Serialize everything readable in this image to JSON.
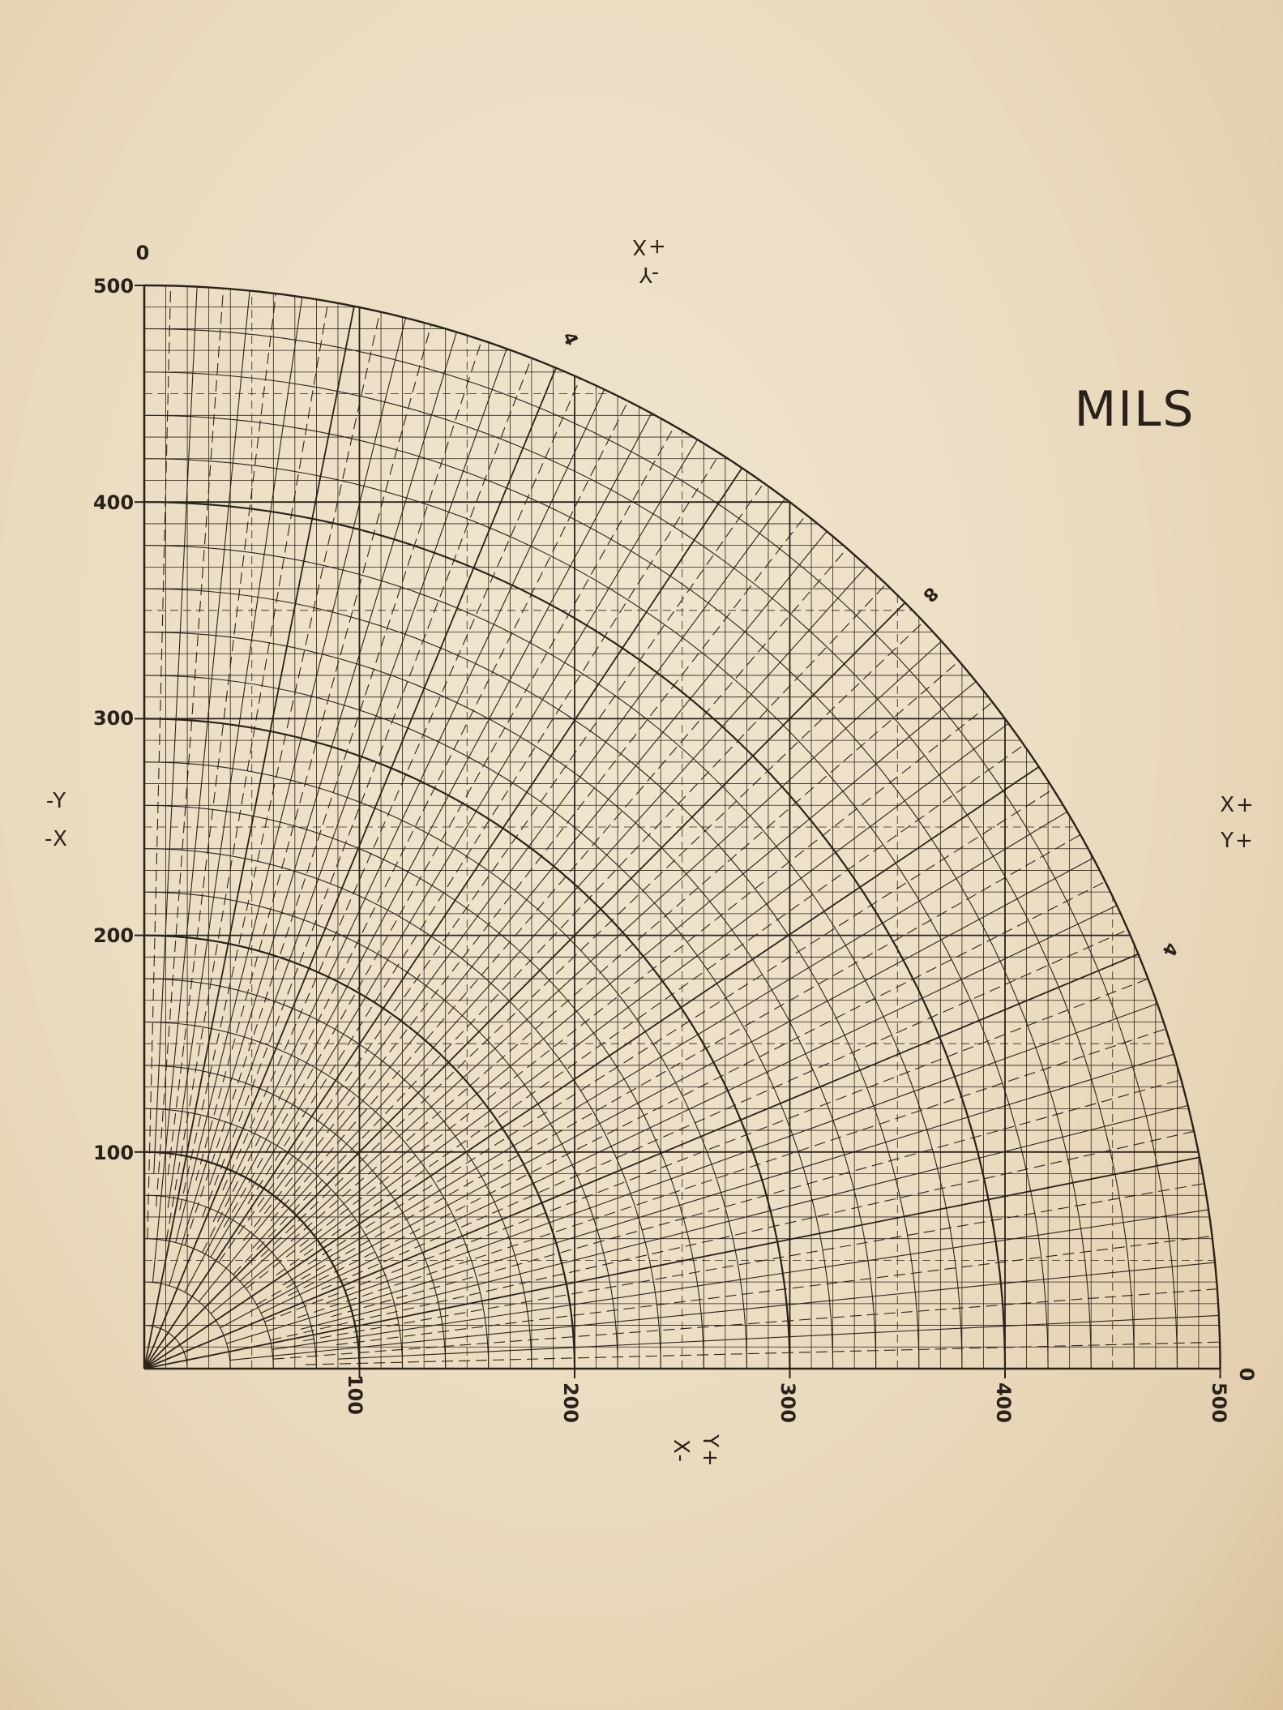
{
  "title": "MILS",
  "axis_ticks": {
    "values": [
      0,
      100,
      200,
      300,
      400,
      500
    ],
    "y_labels": [
      "0",
      "100",
      "200",
      "300",
      "400",
      "500"
    ],
    "x_labels": [
      "100",
      "200",
      "300",
      "400",
      "500"
    ],
    "right_zero": "0"
  },
  "quadrant_labels": {
    "top": [
      "-Y",
      "+X"
    ],
    "left": [
      "-Y",
      "-X"
    ],
    "right": [
      "X+",
      "Y+"
    ],
    "bottom": [
      "X-",
      "Y+"
    ]
  },
  "radial_markers": [
    "4",
    "8",
    "4"
  ],
  "colors": {
    "paper": "#ecdec4",
    "ink": "#2a221a"
  },
  "chart_data": {
    "type": "polar-grid",
    "max_radius": 500,
    "grid_spacing": 10,
    "arc_spacing": 20,
    "xlim": [
      0,
      500
    ],
    "ylim": [
      0,
      500
    ]
  }
}
